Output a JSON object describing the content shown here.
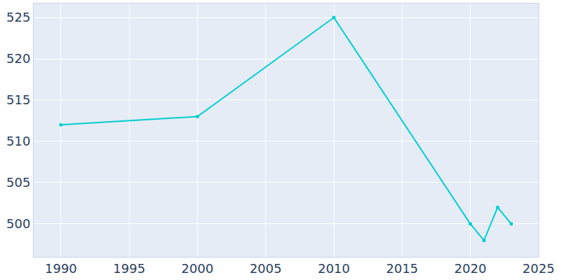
{
  "chart_data": {
    "type": "line",
    "x": [
      1990,
      2000,
      2010,
      2020,
      2021,
      2022,
      2023
    ],
    "values": [
      512,
      513,
      525,
      500,
      498,
      502,
      500
    ],
    "color": "#00ced1",
    "marker": "circle",
    "xlim": [
      1988,
      2025
    ],
    "xticks": [
      1990,
      1995,
      2000,
      2005,
      2010,
      2015,
      2020,
      2025
    ],
    "ylim": [
      496,
      526.7
    ],
    "yticks": [
      500,
      505,
      510,
      515,
      520,
      525
    ],
    "grid": true
  }
}
